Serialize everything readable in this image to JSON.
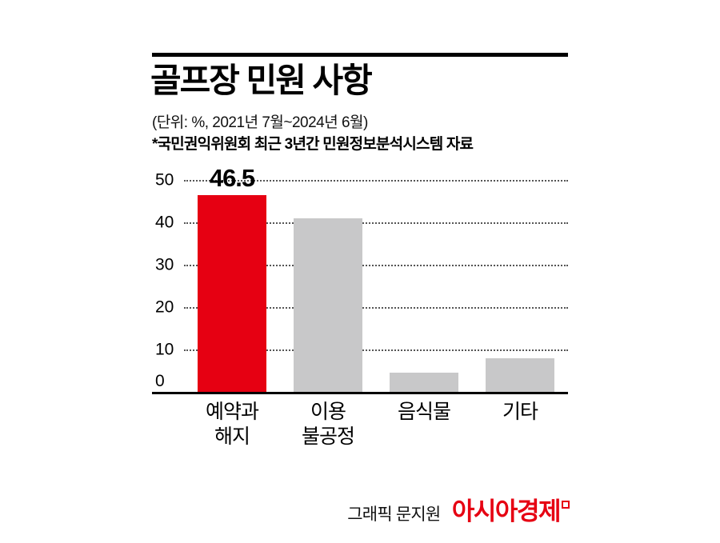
{
  "header": {
    "title": "골프장 민원 사항",
    "subtitle": "(단위: %, 2021년 7월~2024년 6월)",
    "source_note": "*국민권익위원회 최근 3년간 민원정보분석시스템 자료"
  },
  "chart_data": {
    "type": "bar",
    "title": "골프장 민원 사항",
    "unit": "%",
    "period": "2021년 7월~2024년 6월",
    "categories": [
      "예약과\n해지",
      "이용\n불공정",
      "음식물",
      "기타"
    ],
    "values": [
      46.5,
      41,
      4.5,
      8
    ],
    "value_labels": [
      "46.5",
      "",
      "",
      ""
    ],
    "bar_colors": [
      "#e60012",
      "#c8c8c9",
      "#c8c8c9",
      "#c8c8c9"
    ],
    "ylim": [
      0,
      50
    ],
    "yticks": [
      50,
      40,
      30,
      20,
      10,
      0
    ],
    "xlabel": "",
    "ylabel": "",
    "grid": "horizontal-dotted",
    "legend": "none"
  },
  "footer": {
    "credit": "그래픽 문지원",
    "brand": "아시아경제"
  },
  "colors": {
    "accent": "#e60012",
    "bar_gray": "#c8c8c9",
    "text": "#000000"
  }
}
